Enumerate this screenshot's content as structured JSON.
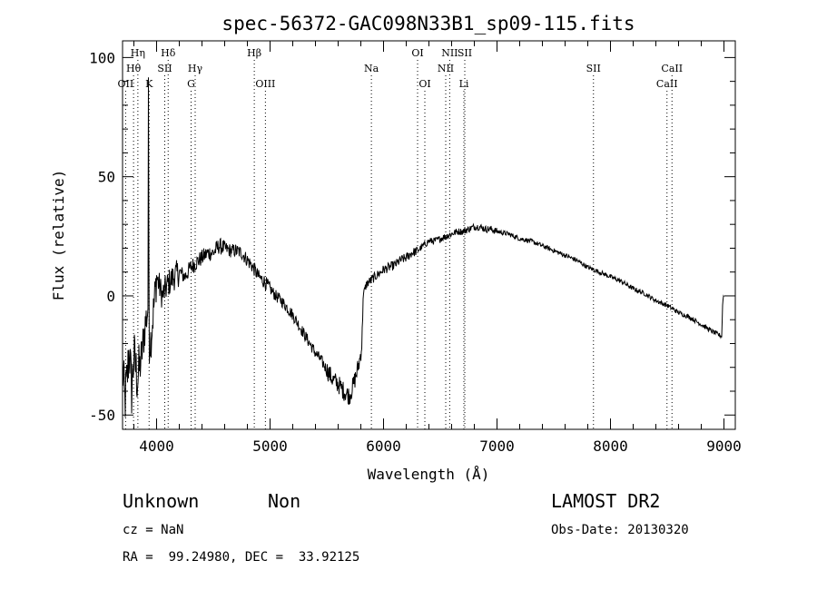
{
  "chart_data": {
    "type": "line",
    "title": "spec-56372-GAC098N33B1_sp09-115.fits",
    "xlabel": "Wavelength (Å)",
    "ylabel": "Flux (relative)",
    "xlim": [
      3700,
      9100
    ],
    "ylim": [
      -56,
      107
    ],
    "xticks": [
      4000,
      5000,
      6000,
      7000,
      8000,
      9000
    ],
    "yticks": [
      -50,
      0,
      50,
      100
    ],
    "grid": false,
    "anchors": [
      [
        3700,
        -30
      ],
      [
        3720,
        -45
      ],
      [
        3740,
        -35
      ],
      [
        3760,
        -22
      ],
      [
        3780,
        -40
      ],
      [
        3800,
        -25
      ],
      [
        3830,
        -35
      ],
      [
        3860,
        -28
      ],
      [
        3880,
        -20
      ],
      [
        3900,
        -12
      ],
      [
        3925,
        -5
      ],
      [
        3927,
        90
      ],
      [
        3930,
        95
      ],
      [
        3933,
        -20
      ],
      [
        3950,
        -18
      ],
      [
        3975,
        -5
      ],
      [
        4000,
        8
      ],
      [
        4050,
        0
      ],
      [
        4100,
        5
      ],
      [
        4150,
        8
      ],
      [
        4200,
        10
      ],
      [
        4250,
        8
      ],
      [
        4300,
        12
      ],
      [
        4350,
        14
      ],
      [
        4400,
        16
      ],
      [
        4450,
        18
      ],
      [
        4500,
        18
      ],
      [
        4550,
        21
      ],
      [
        4600,
        20
      ],
      [
        4650,
        19
      ],
      [
        4700,
        19
      ],
      [
        4750,
        18
      ],
      [
        4800,
        15
      ],
      [
        4850,
        12
      ],
      [
        4900,
        8
      ],
      [
        4950,
        6
      ],
      [
        5000,
        3
      ],
      [
        5050,
        0
      ],
      [
        5100,
        -2
      ],
      [
        5150,
        -5
      ],
      [
        5200,
        -8
      ],
      [
        5250,
        -12
      ],
      [
        5300,
        -16
      ],
      [
        5350,
        -20
      ],
      [
        5400,
        -24
      ],
      [
        5450,
        -27
      ],
      [
        5500,
        -31
      ],
      [
        5550,
        -35
      ],
      [
        5600,
        -37
      ],
      [
        5650,
        -40
      ],
      [
        5700,
        -42
      ],
      [
        5730,
        -38
      ],
      [
        5760,
        -33
      ],
      [
        5790,
        -27
      ],
      [
        5810,
        -20
      ],
      [
        5820,
        0
      ],
      [
        5850,
        5
      ],
      [
        5900,
        7
      ],
      [
        5950,
        9
      ],
      [
        6000,
        11
      ],
      [
        6050,
        12
      ],
      [
        6100,
        13
      ],
      [
        6150,
        15
      ],
      [
        6200,
        16
      ],
      [
        6250,
        18
      ],
      [
        6300,
        19
      ],
      [
        6350,
        21
      ],
      [
        6400,
        23
      ],
      [
        6450,
        23
      ],
      [
        6500,
        24
      ],
      [
        6550,
        25
      ],
      [
        6600,
        26
      ],
      [
        6650,
        27
      ],
      [
        6700,
        27
      ],
      [
        6750,
        28
      ],
      [
        6800,
        29
      ],
      [
        6850,
        29
      ],
      [
        6900,
        28
      ],
      [
        6950,
        28
      ],
      [
        7000,
        27
      ],
      [
        7100,
        26
      ],
      [
        7200,
        24
      ],
      [
        7300,
        23
      ],
      [
        7400,
        21
      ],
      [
        7500,
        19
      ],
      [
        7600,
        17
      ],
      [
        7700,
        15
      ],
      [
        7800,
        12
      ],
      [
        7900,
        10
      ],
      [
        8000,
        8
      ],
      [
        8100,
        6
      ],
      [
        8200,
        3
      ],
      [
        8300,
        1
      ],
      [
        8400,
        -2
      ],
      [
        8500,
        -4
      ],
      [
        8600,
        -7
      ],
      [
        8700,
        -9
      ],
      [
        8800,
        -12
      ],
      [
        8900,
        -15
      ],
      [
        8980,
        -17
      ],
      [
        8990,
        -1
      ],
      [
        9000,
        0
      ]
    ],
    "noise": [
      [
        3700,
        3850,
        12
      ],
      [
        3850,
        4000,
        9
      ],
      [
        4000,
        4200,
        6
      ],
      [
        4200,
        4600,
        3.5
      ],
      [
        4600,
        5000,
        3
      ],
      [
        5000,
        5500,
        2.5
      ],
      [
        5500,
        5820,
        4
      ],
      [
        5820,
        6300,
        2
      ],
      [
        6300,
        7000,
        1.5
      ],
      [
        7000,
        8000,
        1
      ],
      [
        8000,
        9000,
        1
      ]
    ],
    "spectral_lines": [
      {
        "label": "Hη",
        "x": 3835,
        "row": 1
      },
      {
        "label": "Hθ",
        "x": 3797,
        "row": 2
      },
      {
        "label": "OII",
        "x": 3727,
        "row": 3
      },
      {
        "label": "K",
        "x": 3934,
        "row": 3
      },
      {
        "label": "Hδ",
        "x": 4102,
        "row": 1
      },
      {
        "label": "SII",
        "x": 4072,
        "row": 2
      },
      {
        "label": "Hγ",
        "x": 4340,
        "row": 2
      },
      {
        "label": "G",
        "x": 4304,
        "row": 3
      },
      {
        "label": "Hβ",
        "x": 4861,
        "row": 1
      },
      {
        "label": "OIII",
        "x": 4959,
        "row": 3
      },
      {
        "label": "Na",
        "x": 5893,
        "row": 2
      },
      {
        "label": "OI",
        "x": 6300,
        "row": 1
      },
      {
        "label": "OI",
        "x": 6364,
        "row": 3
      },
      {
        "label": "NII",
        "x": 6548,
        "row": 2
      },
      {
        "label": "NII",
        "x": 6583,
        "row": 1
      },
      {
        "label": "SII",
        "x": 6716,
        "row": 1
      },
      {
        "label": "Li",
        "x": 6708,
        "row": 3
      },
      {
        "label": "SII",
        "x": 7850,
        "row": 2
      },
      {
        "label": "CaII",
        "x": 8542,
        "row": 2
      },
      {
        "label": "CaII",
        "x": 8498,
        "row": 3
      }
    ]
  },
  "info": {
    "class": "Unknown",
    "subclass": "Non",
    "cz": "cz = NaN",
    "coords": "RA =  99.24980, DEC =  33.92125",
    "survey": "LAMOST DR2",
    "obs_date": "Obs-Date: 20130320"
  }
}
